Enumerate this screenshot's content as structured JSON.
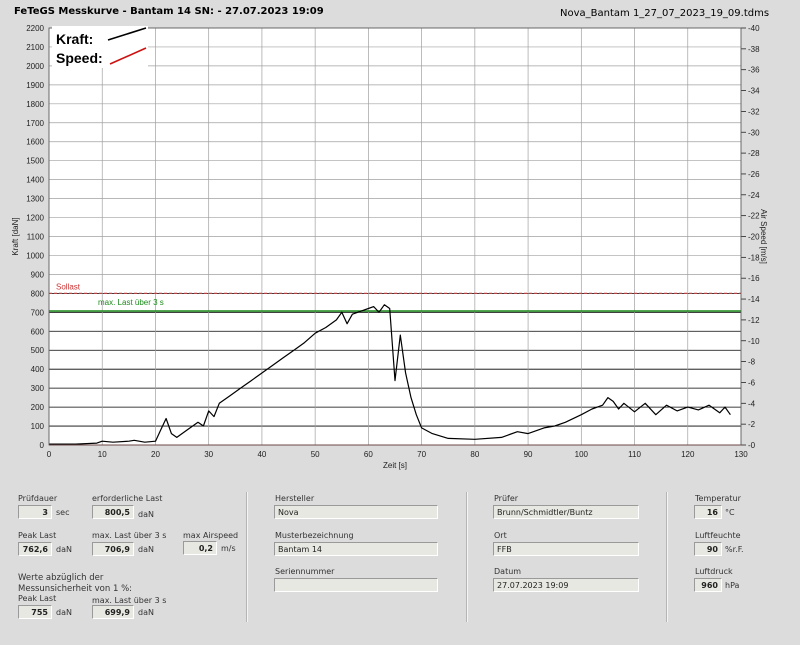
{
  "header": {
    "title": "FeTeGS Messkurve - Bantam 14  SN:  - 27.07.2023 19:09",
    "filename": "Nova_Bantam 1_27_07_2023_19_09.tdms"
  },
  "legend": {
    "kraft": "Kraft:",
    "speed": "Speed:"
  },
  "reference_lines": {
    "sollast": "Sollast",
    "max_last": "max. Last über  3 s"
  },
  "colors": {
    "kraft": "#000000",
    "speed": "#cc1111",
    "sollast": "#cc3333",
    "max_last": "#1a8a1a"
  },
  "chart_data": {
    "type": "line",
    "xlabel": "Zeit [s]",
    "ylabel": "Kraft [daN]",
    "y2label": "Air Speed [m/s]",
    "xlim": [
      0,
      130
    ],
    "ylim": [
      0,
      2200
    ],
    "y2lim": [
      0,
      40
    ],
    "x_ticks": [
      0,
      10,
      20,
      30,
      40,
      50,
      60,
      70,
      80,
      90,
      100,
      110,
      120,
      130
    ],
    "y_ticks": [
      0,
      100,
      200,
      300,
      400,
      500,
      600,
      700,
      800,
      900,
      1000,
      1100,
      1200,
      1300,
      1400,
      1500,
      1600,
      1700,
      1800,
      1900,
      2000,
      2100,
      2200
    ],
    "y2_ticks": [
      0,
      2,
      4,
      6,
      8,
      10,
      12,
      14,
      16,
      18,
      20,
      22,
      24,
      26,
      28,
      30,
      32,
      34,
      36,
      38,
      40
    ],
    "grid": true,
    "reference_values": {
      "sollast": 800.5,
      "max_last": 706.9
    },
    "series": [
      {
        "name": "Kraft",
        "x": [
          0,
          5,
          9,
          10,
          12,
          15,
          16,
          18,
          20,
          21,
          22,
          23,
          24,
          26,
          28,
          29,
          30,
          31,
          32,
          34,
          36,
          38,
          40,
          42,
          44,
          46,
          48,
          50,
          52,
          54,
          55,
          56,
          57,
          58,
          60,
          61,
          62,
          63,
          64,
          65,
          66,
          67,
          68,
          69,
          70,
          72,
          75,
          80,
          85,
          88,
          90,
          93,
          95,
          97,
          100,
          102,
          104,
          105,
          106,
          107,
          108,
          110,
          112,
          114,
          116,
          118,
          120,
          122,
          124,
          126,
          127,
          128
        ],
        "y": [
          5,
          5,
          10,
          20,
          15,
          20,
          25,
          15,
          20,
          80,
          140,
          60,
          40,
          80,
          120,
          100,
          180,
          150,
          220,
          260,
          300,
          340,
          380,
          420,
          460,
          500,
          540,
          590,
          620,
          660,
          700,
          640,
          690,
          700,
          720,
          730,
          700,
          740,
          720,
          340,
          580,
          380,
          250,
          160,
          90,
          60,
          35,
          30,
          40,
          70,
          60,
          90,
          100,
          120,
          160,
          190,
          210,
          250,
          230,
          190,
          220,
          175,
          220,
          160,
          210,
          180,
          200,
          185,
          210,
          170,
          200,
          160
        ]
      },
      {
        "name": "Speed",
        "x": [
          0,
          130
        ],
        "y": [
          0,
          0
        ]
      }
    ]
  },
  "fields": {
    "pruefdauer": {
      "label": "Prüfdauer",
      "value": "3",
      "unit": "sec"
    },
    "erf_last": {
      "label": "erforderliche Last",
      "value": "800,5",
      "unit": "daN"
    },
    "peak_last": {
      "label": "Peak Last",
      "value": "762,6",
      "unit": "daN"
    },
    "max_last": {
      "label": "max. Last über  3 s",
      "value": "706,9",
      "unit": "daN"
    },
    "max_airspeed": {
      "label": "max Airspeed",
      "value": "0,2",
      "unit": "m/s"
    },
    "note": "Werte abzüglich der Messunsicherheit von 1  %:",
    "peak_last_adj": {
      "label": "Peak Last",
      "value": "755",
      "unit": "daN"
    },
    "max_last_adj": {
      "label": "max. Last über  3 s",
      "value": "699,9",
      "unit": "daN"
    },
    "hersteller": {
      "label": "Hersteller",
      "value": "Nova"
    },
    "muster": {
      "label": "Musterbezeichnung",
      "value": "Bantam 14"
    },
    "seriennummer": {
      "label": "Seriennummer",
      "value": ""
    },
    "pruefer": {
      "label": "Prüfer",
      "value": "Brunn/Schmidtler/Buntz"
    },
    "ort": {
      "label": "Ort",
      "value": "FFB"
    },
    "datum": {
      "label": "Datum",
      "value": "27.07.2023 19:09"
    },
    "temperatur": {
      "label": "Temperatur",
      "value": "16",
      "unit": "°C"
    },
    "luftfeuchte": {
      "label": "Luftfeuchte",
      "value": "90",
      "unit": "%r.F."
    },
    "luftdruck": {
      "label": "Luftdruck",
      "value": "960",
      "unit": "hPa"
    }
  }
}
